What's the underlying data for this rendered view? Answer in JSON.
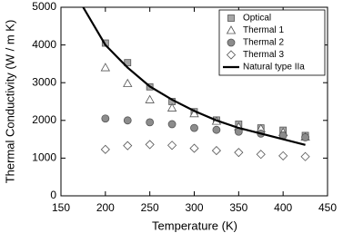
{
  "chart_data": {
    "type": "scatter",
    "xlabel": "Temperature (K)",
    "ylabel": "Thermal Conductivity (W / m K)",
    "xlim": [
      150,
      450
    ],
    "xticks": [
      150,
      200,
      250,
      300,
      350,
      400,
      450
    ],
    "ylim": [
      0,
      5000
    ],
    "yticks": [
      0,
      1000,
      2000,
      3000,
      4000,
      5000
    ],
    "legend": "upper right",
    "series": [
      {
        "name": "Optical",
        "marker": "square",
        "color": "#a6a6a6",
        "x": [
          200,
          225,
          250,
          275,
          300,
          325,
          350,
          375,
          400,
          425
        ],
        "values": [
          4050,
          3530,
          2890,
          2500,
          2230,
          2010,
          1900,
          1800,
          1740,
          1600
        ]
      },
      {
        "name": "Thermal 1",
        "marker": "triangle",
        "color": "#ffffff",
        "x": [
          200,
          225,
          250,
          275,
          300,
          325,
          350,
          375,
          400,
          425
        ],
        "values": [
          3400,
          2980,
          2550,
          2330,
          2180,
          1980,
          1830,
          1780,
          1680,
          1560
        ]
      },
      {
        "name": "Thermal 2",
        "marker": "circle",
        "color": "#8c8c8c",
        "x": [
          200,
          225,
          250,
          275,
          300,
          325,
          350,
          375,
          400,
          425
        ],
        "values": [
          2050,
          2000,
          1950,
          1900,
          1800,
          1750,
          1700,
          1650,
          1600,
          1550
        ]
      },
      {
        "name": "Thermal 3",
        "marker": "diamond",
        "color": "#ffffff",
        "x": [
          200,
          225,
          250,
          275,
          300,
          325,
          350,
          375,
          400,
          425
        ],
        "values": [
          1230,
          1330,
          1360,
          1340,
          1260,
          1200,
          1150,
          1100,
          1060,
          1040
        ]
      },
      {
        "name": "Natural type IIa",
        "marker": "line",
        "color": "#000000",
        "x": [
          175,
          200,
          225,
          250,
          275,
          300,
          325,
          350,
          375,
          400,
          425
        ],
        "values": [
          5000,
          4000,
          3400,
          2900,
          2550,
          2250,
          2000,
          1800,
          1650,
          1500,
          1350
        ]
      }
    ]
  }
}
